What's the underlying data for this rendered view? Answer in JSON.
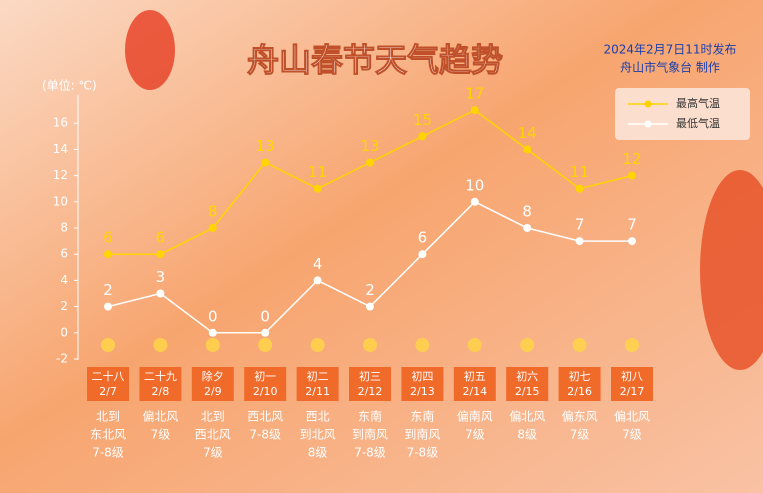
{
  "chart_data": {
    "type": "line",
    "title": "舟山春节天气趋势",
    "subtitle": [
      "2024年2月7日11时发布",
      "舟山市气象台  制作"
    ],
    "y_label": "(单位: ℃)",
    "categories": [
      "2/7",
      "2/8",
      "2/9",
      "2/10",
      "2/11",
      "2/12",
      "2/13",
      "2/14",
      "2/15",
      "2/16",
      "2/17"
    ],
    "lunar": [
      "二十八",
      "二十九",
      "除夕",
      "初一",
      "初二",
      "初三",
      "初四",
      "初五",
      "初六",
      "初七",
      "初八"
    ],
    "wind": [
      [
        "北到",
        "东北风",
        "7-8级"
      ],
      [
        "偏北风",
        "7级"
      ],
      [
        "北到",
        "西北风",
        "7级"
      ],
      [
        "西北风",
        "7-8级"
      ],
      [
        "西北",
        "到北风",
        "8级"
      ],
      [
        "东南",
        "到南风",
        "7-8级"
      ],
      [
        "东南",
        "到南风",
        "7-8级"
      ],
      [
        "偏南风",
        "7级"
      ],
      [
        "偏北风",
        "8级"
      ],
      [
        "偏东风",
        "7级"
      ],
      [
        "偏北风",
        "7级"
      ]
    ],
    "series": [
      {
        "name": "最高气温",
        "color": "#ffd400",
        "values": [
          6,
          6,
          8,
          13,
          11,
          13,
          15,
          17,
          14,
          11,
          12
        ]
      },
      {
        "name": "最低气温",
        "color": "#ffffff",
        "values": [
          2,
          3,
          0,
          0,
          4,
          2,
          6,
          10,
          8,
          7,
          7
        ]
      }
    ],
    "ylim": [
      -2,
      17.5
    ],
    "yticks": [
      -2,
      0,
      2,
      4,
      6,
      8,
      10,
      12,
      14,
      16
    ],
    "legend": "upper-right"
  }
}
